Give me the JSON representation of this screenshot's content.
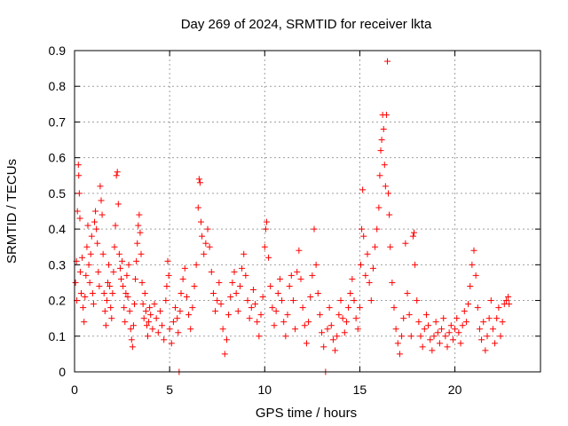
{
  "chart_data": {
    "type": "scatter",
    "title": "Day 269 of 2024, SRMTID for receiver lkta",
    "xlabel": "GPS time / hours",
    "ylabel": "SRMTID / TECUs",
    "xlim": [
      0,
      24.5
    ],
    "ylim": [
      0,
      0.9
    ],
    "xticks": [
      0,
      5,
      10,
      15,
      20
    ],
    "xtick_labels": [
      "0",
      "5",
      "10",
      "15",
      "20"
    ],
    "yticks": [
      0,
      0.1,
      0.2,
      0.3,
      0.4,
      0.5,
      0.6,
      0.7,
      0.8,
      0.9
    ],
    "ytick_labels": [
      "0",
      "0.1",
      "0.2",
      "0.3",
      "0.4",
      "0.5",
      "0.6",
      "0.7",
      "0.8",
      "0.9"
    ],
    "grid": true,
    "marker": "+",
    "marker_color": "#ff0000",
    "series": [
      {
        "name": "SRMTID",
        "points": [
          [
            0.05,
            0.25
          ],
          [
            0.1,
            0.31
          ],
          [
            0.12,
            0.2
          ],
          [
            0.15,
            0.45
          ],
          [
            0.2,
            0.58
          ],
          [
            0.22,
            0.55
          ],
          [
            0.25,
            0.5
          ],
          [
            0.28,
            0.43
          ],
          [
            0.3,
            0.28
          ],
          [
            0.35,
            0.22
          ],
          [
            0.4,
            0.32
          ],
          [
            0.45,
            0.18
          ],
          [
            0.5,
            0.14
          ],
          [
            0.55,
            0.21
          ],
          [
            0.6,
            0.27
          ],
          [
            0.65,
            0.35
          ],
          [
            0.7,
            0.41
          ],
          [
            0.75,
            0.3
          ],
          [
            0.8,
            0.25
          ],
          [
            0.85,
            0.33
          ],
          [
            0.9,
            0.38
          ],
          [
            0.95,
            0.22
          ],
          [
            1.0,
            0.19
          ],
          [
            1.05,
            0.42
          ],
          [
            1.1,
            0.45
          ],
          [
            1.15,
            0.4
          ],
          [
            1.2,
            0.36
          ],
          [
            1.25,
            0.28
          ],
          [
            1.3,
            0.24
          ],
          [
            1.35,
            0.52
          ],
          [
            1.4,
            0.48
          ],
          [
            1.45,
            0.44
          ],
          [
            1.5,
            0.33
          ],
          [
            1.55,
            0.22
          ],
          [
            1.6,
            0.17
          ],
          [
            1.65,
            0.13
          ],
          [
            1.7,
            0.2
          ],
          [
            1.75,
            0.25
          ],
          [
            1.8,
            0.3
          ],
          [
            1.85,
            0.24
          ],
          [
            1.9,
            0.18
          ],
          [
            1.95,
            0.15
          ],
          [
            2.0,
            0.22
          ],
          [
            2.05,
            0.28
          ],
          [
            2.1,
            0.35
          ],
          [
            2.15,
            0.41
          ],
          [
            2.2,
            0.55
          ],
          [
            2.25,
            0.56
          ],
          [
            2.3,
            0.47
          ],
          [
            2.35,
            0.33
          ],
          [
            2.4,
            0.29
          ],
          [
            2.45,
            0.26
          ],
          [
            2.5,
            0.31
          ],
          [
            2.55,
            0.24
          ],
          [
            2.6,
            0.18
          ],
          [
            2.65,
            0.14
          ],
          [
            2.7,
            0.22
          ],
          [
            2.75,
            0.27
          ],
          [
            2.8,
            0.21
          ],
          [
            2.85,
            0.3
          ],
          [
            2.9,
            0.17
          ],
          [
            2.95,
            0.12
          ],
          [
            3.0,
            0.09
          ],
          [
            3.05,
            0.07
          ],
          [
            3.1,
            0.13
          ],
          [
            3.15,
            0.19
          ],
          [
            3.2,
            0.26
          ],
          [
            3.25,
            0.31
          ],
          [
            3.3,
            0.36
          ],
          [
            3.35,
            0.41
          ],
          [
            3.4,
            0.44
          ],
          [
            3.45,
            0.39
          ],
          [
            3.5,
            0.33
          ],
          [
            3.55,
            0.25
          ],
          [
            3.6,
            0.19
          ],
          [
            3.65,
            0.15
          ],
          [
            3.7,
            0.22
          ],
          [
            3.75,
            0.17
          ],
          [
            3.8,
            0.13
          ],
          [
            3.85,
            0.1
          ],
          [
            3.9,
            0.14
          ],
          [
            3.95,
            0.18
          ],
          [
            4.0,
            0.16
          ],
          [
            4.1,
            0.12
          ],
          [
            4.2,
            0.19
          ],
          [
            4.3,
            0.15
          ],
          [
            4.4,
            0.11
          ],
          [
            4.5,
            0.17
          ],
          [
            4.6,
            0.13
          ],
          [
            4.7,
            0.09
          ],
          [
            4.8,
            0.2
          ],
          [
            4.85,
            0.24
          ],
          [
            4.9,
            0.31
          ],
          [
            4.95,
            0.27
          ],
          [
            5.0,
            0.12
          ],
          [
            5.1,
            0.08
          ],
          [
            5.2,
            0.14
          ],
          [
            5.3,
            0.18
          ],
          [
            5.4,
            0.15
          ],
          [
            5.45,
            0.11
          ],
          [
            5.5,
            0.0
          ],
          [
            5.55,
            0.17
          ],
          [
            5.6,
            0.22
          ],
          [
            5.7,
            0.26
          ],
          [
            5.8,
            0.29
          ],
          [
            5.9,
            0.21
          ],
          [
            6.0,
            0.16
          ],
          [
            6.1,
            0.12
          ],
          [
            6.2,
            0.18
          ],
          [
            6.3,
            0.24
          ],
          [
            6.4,
            0.3
          ],
          [
            6.5,
            0.46
          ],
          [
            6.55,
            0.54
          ],
          [
            6.6,
            0.53
          ],
          [
            6.65,
            0.42
          ],
          [
            6.7,
            0.38
          ],
          [
            6.8,
            0.33
          ],
          [
            6.9,
            0.36
          ],
          [
            7.0,
            0.4
          ],
          [
            7.1,
            0.35
          ],
          [
            7.2,
            0.28
          ],
          [
            7.3,
            0.22
          ],
          [
            7.4,
            0.17
          ],
          [
            7.5,
            0.2
          ],
          [
            7.6,
            0.25
          ],
          [
            7.7,
            0.19
          ],
          [
            7.8,
            0.12
          ],
          [
            7.9,
            0.05
          ],
          [
            8.0,
            0.09
          ],
          [
            8.1,
            0.16
          ],
          [
            8.2,
            0.21
          ],
          [
            8.3,
            0.25
          ],
          [
            8.4,
            0.28
          ],
          [
            8.5,
            0.22
          ],
          [
            8.6,
            0.17
          ],
          [
            8.7,
            0.24
          ],
          [
            8.8,
            0.29
          ],
          [
            8.9,
            0.33
          ],
          [
            9.0,
            0.27
          ],
          [
            9.1,
            0.2
          ],
          [
            9.2,
            0.15
          ],
          [
            9.3,
            0.18
          ],
          [
            9.4,
            0.23
          ],
          [
            9.5,
            0.19
          ],
          [
            9.6,
            0.14
          ],
          [
            9.7,
            0.1
          ],
          [
            9.8,
            0.16
          ],
          [
            9.9,
            0.21
          ],
          [
            10.0,
            0.35
          ],
          [
            10.05,
            0.4
          ],
          [
            10.1,
            0.42
          ],
          [
            10.2,
            0.32
          ],
          [
            10.3,
            0.24
          ],
          [
            10.4,
            0.18
          ],
          [
            10.5,
            0.13
          ],
          [
            10.6,
            0.17
          ],
          [
            10.7,
            0.22
          ],
          [
            10.8,
            0.26
          ],
          [
            10.9,
            0.2
          ],
          [
            11.0,
            0.14
          ],
          [
            11.1,
            0.1
          ],
          [
            11.2,
            0.16
          ],
          [
            11.3,
            0.24
          ],
          [
            11.4,
            0.27
          ],
          [
            11.5,
            0.2
          ],
          [
            11.6,
            0.12
          ],
          [
            11.7,
            0.28
          ],
          [
            11.8,
            0.34
          ],
          [
            11.9,
            0.26
          ],
          [
            12.0,
            0.18
          ],
          [
            12.1,
            0.13
          ],
          [
            12.2,
            0.08
          ],
          [
            12.3,
            0.14
          ],
          [
            12.4,
            0.21
          ],
          [
            12.5,
            0.27
          ],
          [
            12.6,
            0.4
          ],
          [
            12.7,
            0.3
          ],
          [
            12.8,
            0.22
          ],
          [
            12.9,
            0.16
          ],
          [
            13.0,
            0.11
          ],
          [
            13.1,
            0.07
          ],
          [
            13.2,
            0.0
          ],
          [
            13.3,
            0.12
          ],
          [
            13.4,
            0.18
          ],
          [
            13.5,
            0.13
          ],
          [
            13.6,
            0.09
          ],
          [
            13.7,
            0.06
          ],
          [
            13.8,
            0.1
          ],
          [
            13.9,
            0.16
          ],
          [
            14.0,
            0.2
          ],
          [
            14.1,
            0.15
          ],
          [
            14.2,
            0.11
          ],
          [
            14.3,
            0.14
          ],
          [
            14.4,
            0.18
          ],
          [
            14.5,
            0.22
          ],
          [
            14.6,
            0.26
          ],
          [
            14.7,
            0.2
          ],
          [
            14.8,
            0.15
          ],
          [
            14.9,
            0.12
          ],
          [
            15.0,
            0.18
          ],
          [
            15.05,
            0.3
          ],
          [
            15.1,
            0.4
          ],
          [
            15.15,
            0.51
          ],
          [
            15.2,
            0.38
          ],
          [
            15.3,
            0.27
          ],
          [
            15.4,
            0.33
          ],
          [
            15.5,
            0.25
          ],
          [
            15.6,
            0.2
          ],
          [
            15.7,
            0.29
          ],
          [
            15.8,
            0.35
          ],
          [
            15.9,
            0.4
          ],
          [
            16.0,
            0.46
          ],
          [
            16.05,
            0.55
          ],
          [
            16.1,
            0.62
          ],
          [
            16.15,
            0.65
          ],
          [
            16.2,
            0.72
          ],
          [
            16.25,
            0.68
          ],
          [
            16.3,
            0.58
          ],
          [
            16.35,
            0.52
          ],
          [
            16.4,
            0.72
          ],
          [
            16.45,
            0.87
          ],
          [
            16.5,
            0.5
          ],
          [
            16.55,
            0.44
          ],
          [
            16.6,
            0.35
          ],
          [
            16.7,
            0.25
          ],
          [
            16.8,
            0.18
          ],
          [
            16.9,
            0.12
          ],
          [
            17.0,
            0.08
          ],
          [
            17.1,
            0.05
          ],
          [
            17.2,
            0.1
          ],
          [
            17.3,
            0.15
          ],
          [
            17.4,
            0.36
          ],
          [
            17.5,
            0.22
          ],
          [
            17.6,
            0.16
          ],
          [
            17.7,
            0.1
          ],
          [
            17.8,
            0.38
          ],
          [
            17.85,
            0.39
          ],
          [
            17.9,
            0.3
          ],
          [
            18.0,
            0.2
          ],
          [
            18.1,
            0.14
          ],
          [
            18.2,
            0.1
          ],
          [
            18.3,
            0.07
          ],
          [
            18.4,
            0.12
          ],
          [
            18.5,
            0.16
          ],
          [
            18.6,
            0.13
          ],
          [
            18.7,
            0.09
          ],
          [
            18.8,
            0.06
          ],
          [
            18.9,
            0.1
          ],
          [
            19.0,
            0.14
          ],
          [
            19.1,
            0.11
          ],
          [
            19.2,
            0.08
          ],
          [
            19.3,
            0.12
          ],
          [
            19.4,
            0.15
          ],
          [
            19.5,
            0.1
          ],
          [
            19.6,
            0.07
          ],
          [
            19.7,
            0.11
          ],
          [
            19.8,
            0.13
          ],
          [
            19.9,
            0.09
          ],
          [
            20.0,
            0.12
          ],
          [
            20.1,
            0.15
          ],
          [
            20.2,
            0.11
          ],
          [
            20.3,
            0.08
          ],
          [
            20.4,
            0.13
          ],
          [
            20.5,
            0.17
          ],
          [
            20.6,
            0.14
          ],
          [
            20.7,
            0.19
          ],
          [
            20.8,
            0.24
          ],
          [
            20.9,
            0.3
          ],
          [
            21.0,
            0.34
          ],
          [
            21.1,
            0.27
          ],
          [
            21.2,
            0.18
          ],
          [
            21.3,
            0.12
          ],
          [
            21.4,
            0.09
          ],
          [
            21.5,
            0.14
          ],
          [
            21.6,
            0.06
          ],
          [
            21.7,
            0.1
          ],
          [
            21.8,
            0.15
          ],
          [
            21.9,
            0.2
          ],
          [
            22.0,
            0.12
          ],
          [
            22.1,
            0.08
          ],
          [
            22.2,
            0.15
          ],
          [
            22.3,
            0.18
          ],
          [
            22.4,
            0.1
          ],
          [
            22.5,
            0.14
          ],
          [
            22.6,
            0.19
          ],
          [
            22.7,
            0.2
          ],
          [
            22.8,
            0.21
          ],
          [
            22.85,
            0.19
          ]
        ]
      }
    ]
  }
}
